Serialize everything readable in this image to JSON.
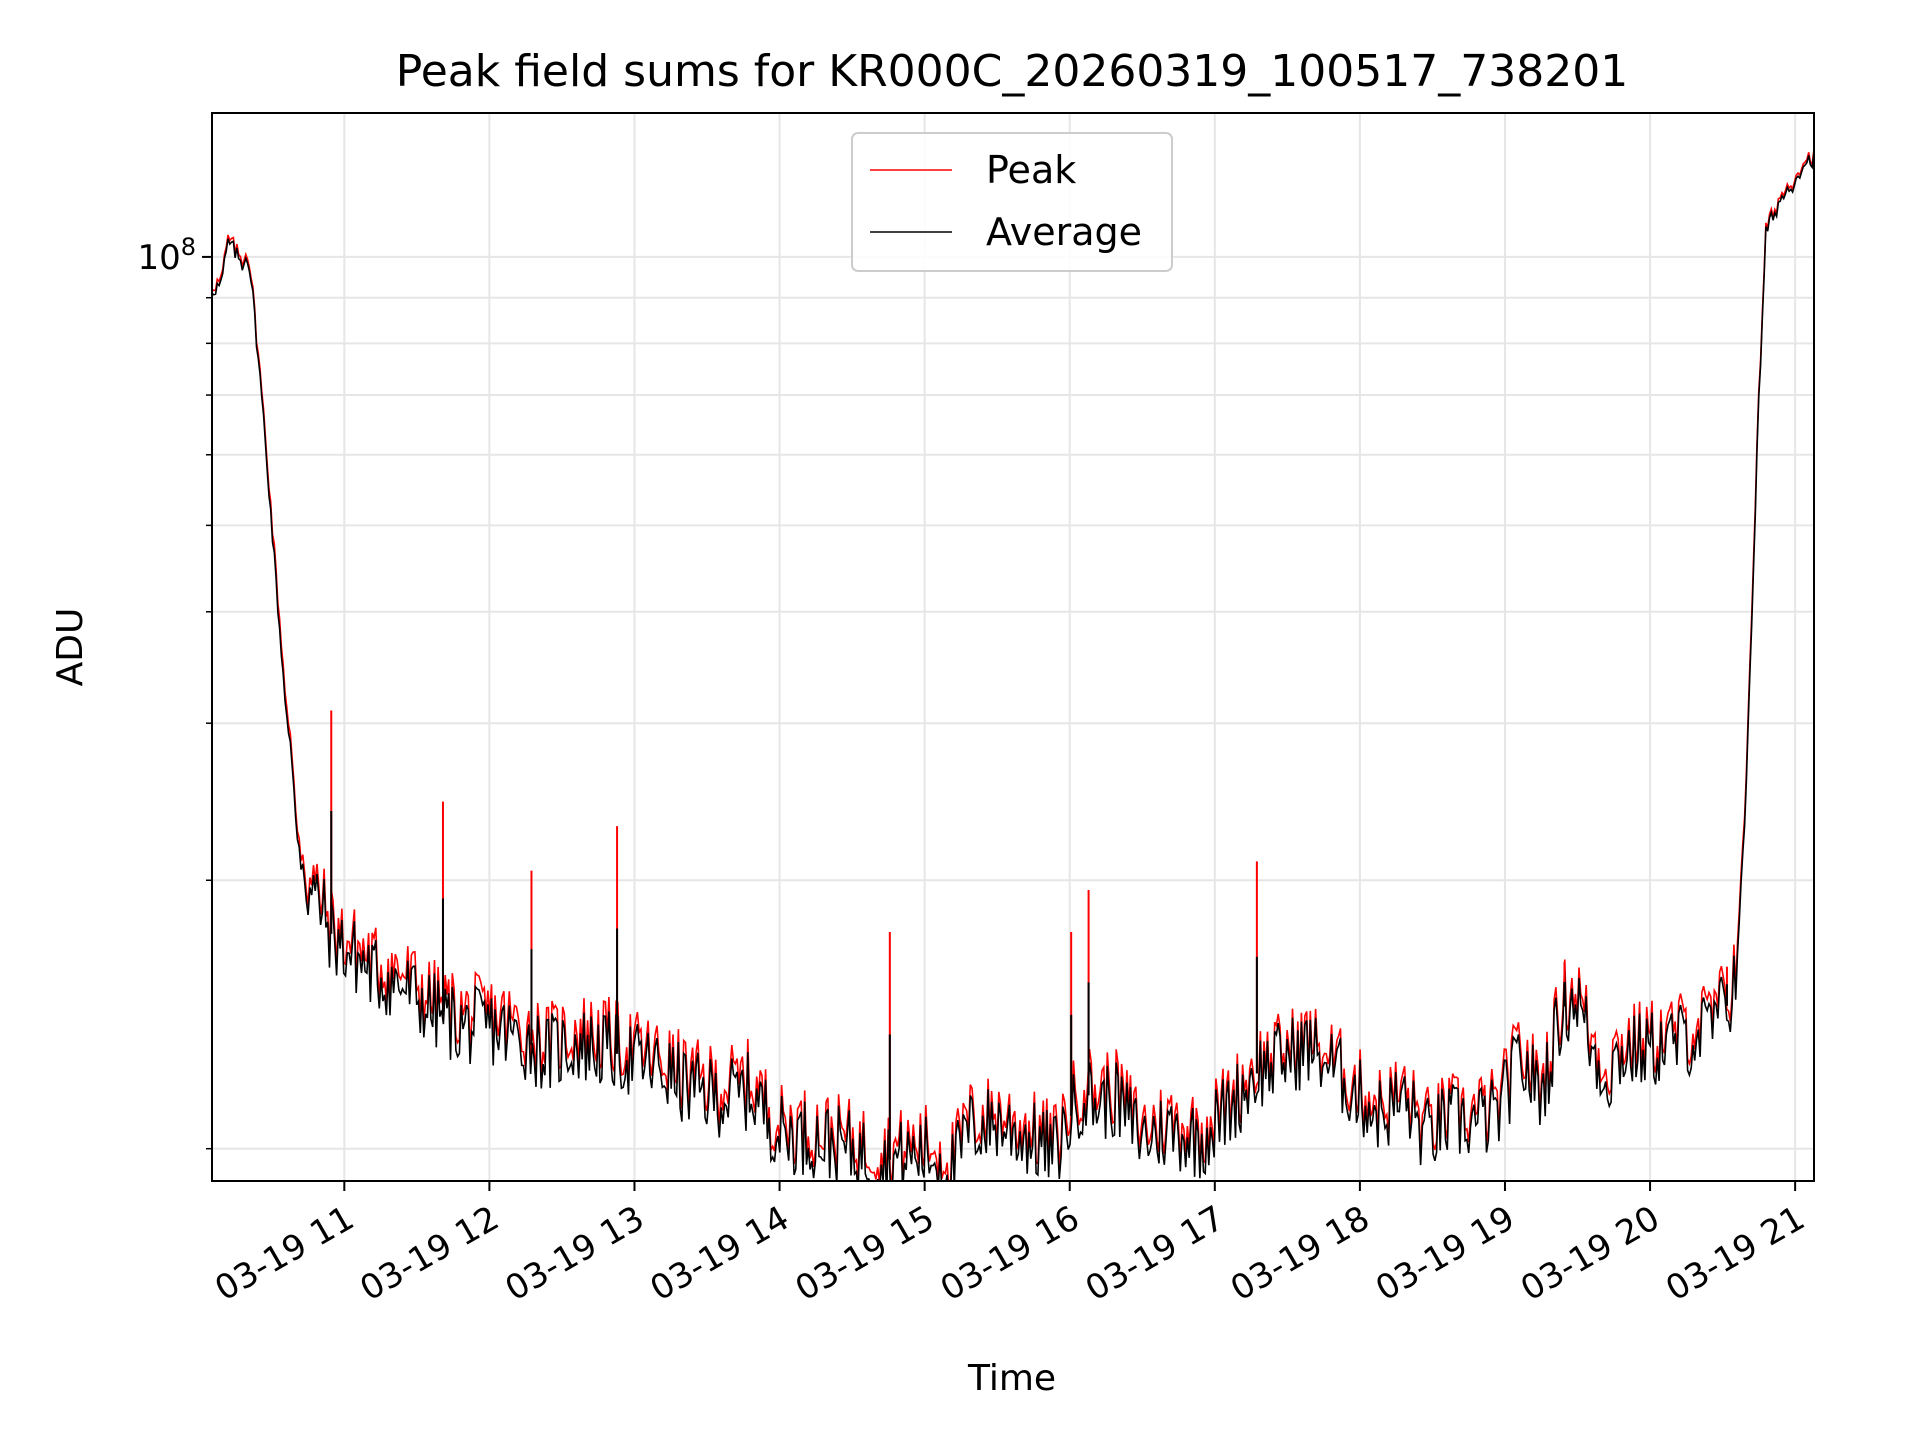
{
  "chart_data": {
    "type": "line",
    "title": "Peak field sums for KR000C_20260319_100517_738201",
    "xlabel": "Time",
    "ylabel": "ADU",
    "yscale": "log",
    "grid": true,
    "legend_position": "top-center",
    "xlim": [
      10.088,
      21.13
    ],
    "ylim": [
      9200000.0,
      145000000.0
    ],
    "x_tick_values": [
      11,
      12,
      13,
      14,
      15,
      16,
      17,
      18,
      19,
      20,
      21
    ],
    "x_tick_labels": [
      "03-19 11",
      "03-19 12",
      "03-19 13",
      "03-19 14",
      "03-19 15",
      "03-19 16",
      "03-19 17",
      "03-19 18",
      "03-19 19",
      "03-19 20",
      "03-19 21"
    ],
    "y_major_tick": {
      "value": 100000000.0,
      "base": "10",
      "exponent": "8"
    },
    "y_minor_ticks": [
      10000000.0,
      20000000.0,
      30000000.0,
      40000000.0,
      50000000.0,
      60000000.0,
      70000000.0,
      80000000.0,
      90000000.0
    ],
    "series": [
      {
        "name": "Peak",
        "color": "#ff0000",
        "x": [
          10.09,
          10.15,
          10.2,
          10.25,
          10.3,
          10.33,
          10.36,
          10.45,
          10.55,
          10.65,
          10.75,
          10.82,
          10.9,
          11.0,
          11.1,
          11.2,
          11.4,
          11.6,
          11.8,
          12.0,
          12.2,
          12.4,
          12.6,
          12.8,
          13.0,
          13.2,
          13.4,
          13.6,
          13.8,
          13.9,
          14.0,
          14.2,
          14.4,
          14.6,
          14.8,
          15.0,
          15.2,
          15.3,
          15.5,
          15.7,
          15.9,
          16.0,
          16.1,
          16.2,
          16.3,
          16.5,
          16.7,
          16.9,
          17.1,
          17.3,
          17.5,
          17.65,
          17.8,
          18.0,
          18.15,
          18.3,
          18.45,
          18.6,
          18.8,
          18.95,
          19.1,
          19.25,
          19.4,
          19.5,
          19.6,
          19.7,
          19.8,
          20.0,
          20.2,
          20.4,
          20.55,
          20.6,
          20.65,
          20.7,
          20.75,
          20.8,
          20.9,
          21.0,
          21.05,
          21.12
        ],
        "y": [
          93000000.0,
          94000000.0,
          105000000.0,
          102000000.0,
          99000000.0,
          102000000.0,
          95000000.0,
          65000000.0,
          40000000.0,
          25000000.0,
          20000000.0,
          19500000.0,
          18000000.0,
          17200000.0,
          16800000.0,
          16200000.0,
          15800000.0,
          14800000.0,
          14200000.0,
          14200000.0,
          13800000.0,
          13200000.0,
          13600000.0,
          13400000.0,
          13000000.0,
          12600000.0,
          12000000.0,
          11800000.0,
          12000000.0,
          11300000.0,
          10700000.0,
          10600000.0,
          10400000.0,
          10100000.0,
          10000000.0,
          10200000.0,
          9800000.0,
          10800000.0,
          11000000.0,
          10600000.0,
          10200000.0,
          11200000.0,
          12000000.0,
          11600000.0,
          11800000.0,
          10600000.0,
          10800000.0,
          10500000.0,
          11400000.0,
          12500000.0,
          13000000.0,
          13300000.0,
          12700000.0,
          11700000.0,
          11200000.0,
          11700000.0,
          10600000.0,
          11000000.0,
          11000000.0,
          11200000.0,
          13000000.0,
          11800000.0,
          14800000.0,
          15200000.0,
          13300000.0,
          12400000.0,
          13200000.0,
          13300000.0,
          13600000.0,
          14000000.0,
          15000000.0,
          17000000.0,
          23000000.0,
          40000000.0,
          70000000.0,
          108000000.0,
          117000000.0,
          123000000.0,
          128000000.0,
          130000000.0
        ]
      },
      {
        "name": "Average",
        "color": "#000000",
        "x": [
          10.09,
          10.15,
          10.2,
          10.25,
          10.3,
          10.33,
          10.36,
          10.45,
          10.55,
          10.65,
          10.75,
          10.82,
          10.9,
          11.0,
          11.1,
          11.2,
          11.4,
          11.6,
          11.8,
          12.0,
          12.2,
          12.4,
          12.6,
          12.8,
          13.0,
          13.2,
          13.4,
          13.6,
          13.8,
          13.9,
          14.0,
          14.2,
          14.4,
          14.6,
          14.8,
          15.0,
          15.2,
          15.3,
          15.5,
          15.7,
          15.9,
          16.0,
          16.1,
          16.2,
          16.3,
          16.5,
          16.7,
          16.9,
          17.1,
          17.3,
          17.5,
          17.65,
          17.8,
          18.0,
          18.15,
          18.3,
          18.45,
          18.6,
          18.8,
          18.95,
          19.1,
          19.25,
          19.4,
          19.5,
          19.6,
          19.7,
          19.8,
          20.0,
          20.2,
          20.4,
          20.55,
          20.6,
          20.65,
          20.7,
          20.75,
          20.8,
          20.9,
          21.0,
          21.05,
          21.12
        ],
        "y": [
          92000000.0,
          93000000.0,
          104000000.0,
          101000000.0,
          98000000.0,
          101000000.0,
          94000000.0,
          64000000.0,
          39000000.0,
          24500000.0,
          19500000.0,
          19000000.0,
          17500000.0,
          16700000.0,
          16300000.0,
          15700000.0,
          15200000.0,
          14300000.0,
          13700000.0,
          13700000.0,
          13300000.0,
          12800000.0,
          13100000.0,
          12900000.0,
          12600000.0,
          12200000.0,
          11600000.0,
          11400000.0,
          11600000.0,
          11000000.0,
          10400000.0,
          10300000.0,
          10100000.0,
          9800000.0,
          9700000.0,
          9900000.0,
          9500000.0,
          10500000.0,
          10700000.0,
          10300000.0,
          9900000.0,
          10800000.0,
          11600000.0,
          11200000.0,
          11400000.0,
          10300000.0,
          10500000.0,
          10200000.0,
          11100000.0,
          12200000.0,
          12700000.0,
          13000000.0,
          12400000.0,
          11400000.0,
          10900000.0,
          11400000.0,
          10300000.0,
          10700000.0,
          10700000.0,
          10900000.0,
          12600000.0,
          11500000.0,
          14400000.0,
          14800000.0,
          12900000.0,
          12000000.0,
          12800000.0,
          12900000.0,
          13200000.0,
          13600000.0,
          14600000.0,
          16500000.0,
          22500000.0,
          39000000.0,
          69000000.0,
          107000000.0,
          116000000.0,
          122000000.0,
          127000000.0,
          129000000.0
        ]
      }
    ],
    "spikes": [
      {
        "x": 10.91,
        "y": 31000000.0
      },
      {
        "x": 11.68,
        "y": 24500000.0
      },
      {
        "x": 12.29,
        "y": 20500000.0
      },
      {
        "x": 12.88,
        "y": 23000000.0
      },
      {
        "x": 14.76,
        "y": 17500000.0
      },
      {
        "x": 16.13,
        "y": 19500000.0
      },
      {
        "x": 16.01,
        "y": 17500000.0
      },
      {
        "x": 17.29,
        "y": 21000000.0
      },
      {
        "x": 19.41,
        "y": 16200000.0
      },
      {
        "x": 20.53,
        "y": 16000000.0
      }
    ]
  }
}
